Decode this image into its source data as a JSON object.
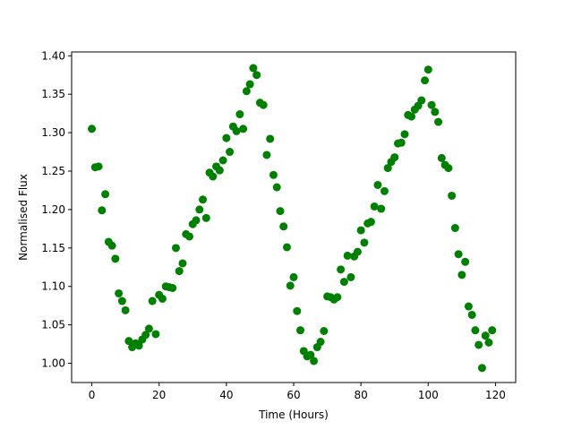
{
  "chart_data": {
    "type": "scatter",
    "title": "",
    "xlabel": "Time (Hours)",
    "ylabel": "Normalised Flux",
    "xlim": [
      -6,
      126
    ],
    "ylim": [
      0.975,
      1.405
    ],
    "xticks": [
      0,
      20,
      40,
      60,
      80,
      100,
      120
    ],
    "yticks": [
      1.0,
      1.05,
      1.1,
      1.15,
      1.2,
      1.25,
      1.3,
      1.35,
      1.4
    ],
    "xtick_labels": [
      "0",
      "20",
      "40",
      "60",
      "80",
      "100",
      "120"
    ],
    "ytick_labels": [
      "1.00",
      "1.05",
      "1.10",
      "1.15",
      "1.20",
      "1.25",
      "1.30",
      "1.35",
      "1.40"
    ],
    "grid": false,
    "marker_color": "#008000",
    "series": [
      {
        "x": [
          0,
          1,
          2,
          3,
          4,
          5,
          6,
          7,
          8,
          9,
          10,
          11,
          12,
          13,
          14,
          15,
          16,
          17,
          18,
          19,
          20,
          21,
          22,
          23,
          24,
          25,
          26,
          27,
          28,
          29,
          30,
          31,
          32,
          33,
          34,
          35,
          36,
          37,
          38,
          39,
          40,
          41,
          42,
          43,
          44,
          45,
          46,
          47,
          48,
          49,
          50,
          51,
          52,
          53,
          54,
          55,
          56,
          57,
          58,
          59,
          60,
          61,
          62,
          63,
          64,
          65,
          66,
          67,
          68,
          69,
          70,
          71,
          72,
          73,
          74,
          75,
          76,
          77,
          78,
          79,
          80,
          81,
          82,
          83,
          84,
          85,
          86,
          87,
          88,
          89,
          90,
          91,
          92,
          93,
          94,
          95,
          96,
          97,
          98,
          99,
          100,
          101,
          102,
          103,
          104,
          105,
          106,
          107,
          108,
          109,
          110,
          111,
          112,
          113,
          114,
          115,
          116,
          117,
          118,
          119
        ],
        "y": [
          1.305,
          1.255,
          1.256,
          1.199,
          1.22,
          1.158,
          1.153,
          1.136,
          1.091,
          1.081,
          1.069,
          1.029,
          1.021,
          1.026,
          1.023,
          1.031,
          1.037,
          1.045,
          1.081,
          1.038,
          1.089,
          1.084,
          1.1,
          1.099,
          1.098,
          1.15,
          1.12,
          1.13,
          1.168,
          1.165,
          1.181,
          1.186,
          1.2,
          1.213,
          1.189,
          1.248,
          1.243,
          1.256,
          1.251,
          1.264,
          1.293,
          1.275,
          1.308,
          1.302,
          1.324,
          1.305,
          1.354,
          1.363,
          1.384,
          1.375,
          1.339,
          1.336,
          1.271,
          1.292,
          1.245,
          1.229,
          1.198,
          1.178,
          1.151,
          1.101,
          1.112,
          1.068,
          1.043,
          1.016,
          1.009,
          1.011,
          1.003,
          1.021,
          1.028,
          1.042,
          1.087,
          1.086,
          1.083,
          1.086,
          1.122,
          1.106,
          1.14,
          1.112,
          1.139,
          1.145,
          1.173,
          1.157,
          1.182,
          1.184,
          1.204,
          1.232,
          1.201,
          1.224,
          1.254,
          1.262,
          1.268,
          1.286,
          1.287,
          1.298,
          1.323,
          1.321,
          1.33,
          1.335,
          1.342,
          1.368,
          1.382,
          1.336,
          1.327,
          1.314,
          1.267,
          1.258,
          1.254,
          1.218,
          1.176,
          1.142,
          1.115,
          1.132,
          1.074,
          1.063,
          1.043,
          1.024,
          0.994,
          1.036,
          1.027,
          1.043
        ]
      }
    ]
  }
}
